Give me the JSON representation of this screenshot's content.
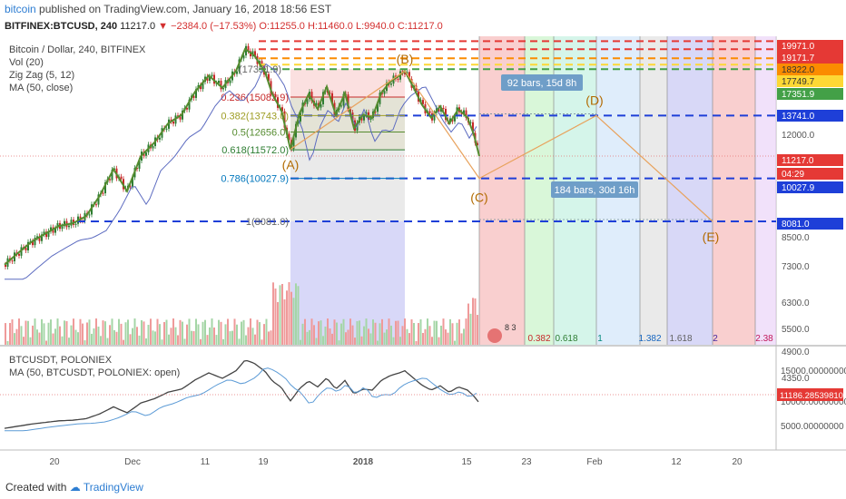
{
  "header": {
    "publisher": "bitcoin",
    "published_text": "published on TradingView.com, January 16, 2018 18:56 EST"
  },
  "info_line": {
    "symbol": "BITFINEX:BTCUSD, 240",
    "last": "11217.0",
    "change": "−2384.0 (−17.53%)",
    "ohlc": "O:11255.0 H:11460.0 L:9940.0 C:11217.0"
  },
  "legend": {
    "title": "Bitcoin / Dollar, 240, BITFINEX",
    "items": [
      "Vol (20)",
      "Zig Zag (5, 12)",
      "MA (50, close)"
    ]
  },
  "sub_legend": {
    "title": "BTCUSDT, POLONIEX",
    "ma": "MA (50, BTCUSDT, POLONIEX: open)"
  },
  "footer": {
    "created_with": "Created with",
    "brand": "TradingView"
  },
  "colors": {
    "candle_up": "#2e7d32",
    "candle_down": "#c62828",
    "zigzag": "#558b2f",
    "ma": "#5c6bc0",
    "fib_projection": "#e8a25c"
  },
  "chart_data": [
    {
      "type": "candlestick",
      "title": "Bitcoin / Dollar, 240, BITFINEX",
      "y_scale": "log",
      "ylim": [
        4350,
        20000
      ],
      "x_ticks": [
        "20",
        "Dec",
        "11",
        "19",
        "2018",
        "15",
        "23",
        "Feb",
        "12",
        "20"
      ],
      "y_ticks": [
        "12000.0",
        "8500.0",
        "7300.0",
        "6300.0",
        "5500.0",
        "4900.0",
        "4350.0"
      ],
      "price_labels": [
        {
          "value": "19971.0",
          "color": "#e53935"
        },
        {
          "value": "19171.7",
          "color": "#e53935"
        },
        {
          "value": "18322.0",
          "color": "#fb8c00"
        },
        {
          "value": "17749.7",
          "color": "#fdd835"
        },
        {
          "value": "17351.9",
          "color": "#43a047"
        },
        {
          "value": "13741.0",
          "color": "#1e3fd8"
        },
        {
          "value": "11217.0",
          "color": "#e53935"
        },
        {
          "value": "04:29",
          "color": "#e53935"
        },
        {
          "value": "10027.9",
          "color": "#1e3fd8"
        },
        {
          "value": "8081.0",
          "color": "#1e3fd8"
        }
      ],
      "fib_retracement": [
        {
          "label": "0.236(15082.9)",
          "value": 15082.9,
          "color": "#c62828"
        },
        {
          "label": "0.382(13743.0)",
          "value": 13743.0,
          "color": "#9e9d24"
        },
        {
          "label": "0.5(12656.0)",
          "value": 12656.0,
          "color": "#558b2f"
        },
        {
          "label": "0.618(11572.0)",
          "value": 11572.0,
          "color": "#2e7d32"
        },
        {
          "label": "0.786(10027.9)",
          "value": 10027.9,
          "color": "#0277bd"
        },
        {
          "label": "1(8081.0)",
          "value": 8081.0,
          "color": "#666666"
        },
        {
          "label": "(17351.9)",
          "value": 17351.9,
          "color": "#666666"
        }
      ],
      "wave_labels": [
        "(A)",
        "(B)",
        "(C)",
        "(D)",
        "(E)"
      ],
      "fib_time_zones": [
        "0.382",
        "0.618",
        "1",
        "1.382",
        "1.618",
        "2",
        "2.38"
      ],
      "ranges": [
        "92 bars, 15d 8h",
        "184 bars, 30d 16h"
      ],
      "series": [
        {
          "name": "BTCUSD",
          "ohlc_last": {
            "open": 11255.0,
            "high": 11460.0,
            "low": 9940.0,
            "close": 11217.0
          }
        }
      ],
      "indicators": [
        "Vol (20)",
        "Zig Zag (5, 12)",
        "MA (50, close)"
      ],
      "badge": "8 3"
    },
    {
      "type": "candlestick",
      "title": "BTCUSDT, POLONIEX",
      "y_ticks": [
        "15000.00000000",
        "10000.00000000",
        "5000.00000000"
      ],
      "last_label": "11186.28539810",
      "indicators": [
        "MA (50, BTCUSDT, POLONIEX: open)"
      ]
    }
  ]
}
